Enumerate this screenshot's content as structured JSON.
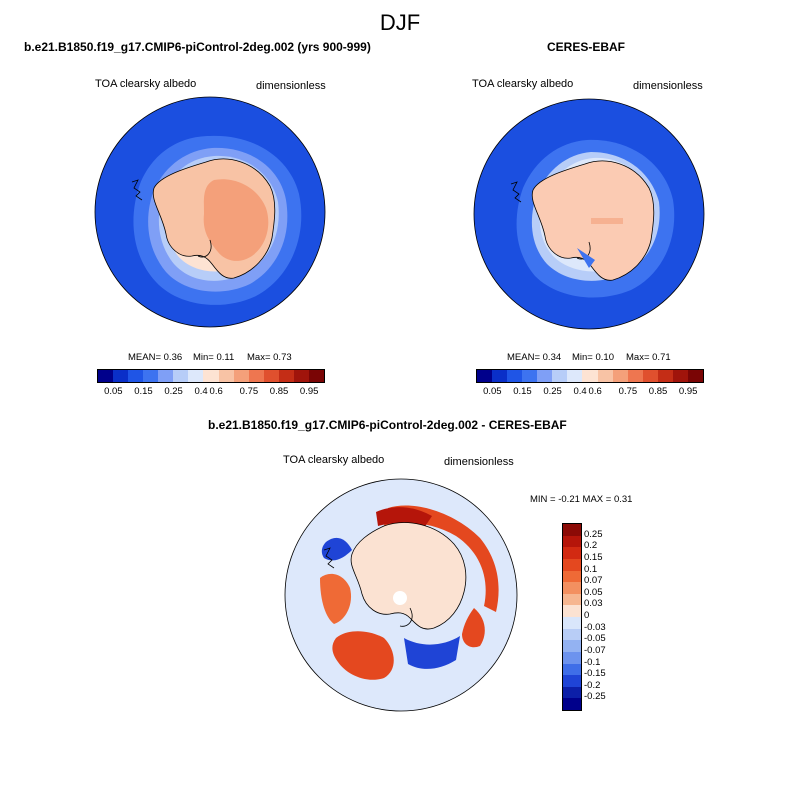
{
  "main_title": "DJF",
  "panels": [
    {
      "title": "b.e21.B1850.f19_g17.CMIP6-piControl-2deg.002 (yrs 900-999)",
      "left_label": "TOA clearsky albedo",
      "right_label": "dimensionless",
      "stats": {
        "mean_label": "MEAN=",
        "mean": "0.36",
        "min_label": "Min=",
        "min": "0.11",
        "max_label": "Max=",
        "max": "0.73"
      }
    },
    {
      "title": "CERES-EBAF",
      "left_label": "TOA clearsky albedo",
      "right_label": "dimensionless",
      "stats": {
        "mean_label": "MEAN=",
        "mean": "0.34",
        "min_label": "Min=",
        "min": "0.10",
        "max_label": "Max=",
        "max": "0.71"
      }
    }
  ],
  "absolute_colorbar": {
    "labels": [
      "0.05",
      "0.15",
      "0.25",
      "0.4",
      "0.6",
      "0.75",
      "0.85",
      "0.95"
    ],
    "colors": [
      "#00008b",
      "#0a2fc8",
      "#1f55e6",
      "#3d73f0",
      "#7f9ff6",
      "#b7cdf8",
      "#dde8fb",
      "#fde3d3",
      "#f8c3a5",
      "#f4a07a",
      "#ee7650",
      "#e0502e",
      "#c42d16",
      "#a0140b",
      "#7a0505"
    ]
  },
  "difference_panel": {
    "title": "b.e21.B1850.f19_g17.CMIP6-piControl-2deg.002 - CERES-EBAF",
    "left_label": "TOA clearsky albedo",
    "right_label": "dimensionless",
    "minmax": "MIN = -0.21  MAX =  0.31"
  },
  "difference_colorbar": {
    "labels": [
      "0.25",
      "0.2",
      "0.15",
      "0.1",
      "0.07",
      "0.05",
      "0.03",
      "0",
      "-0.03",
      "-0.05",
      "-0.07",
      "-0.1",
      "-0.15",
      "-0.2",
      "-0.25"
    ],
    "colors": [
      "#8b0a06",
      "#b5150a",
      "#d22a12",
      "#e4481f",
      "#ef6a36",
      "#f39060",
      "#f6b690",
      "#fbe2d2",
      "#d9e6fb",
      "#b8cdf6",
      "#93b2f2",
      "#6d93ee",
      "#3f6ee8",
      "#1f44d6",
      "#0c1fa8",
      "#00008b"
    ]
  }
}
